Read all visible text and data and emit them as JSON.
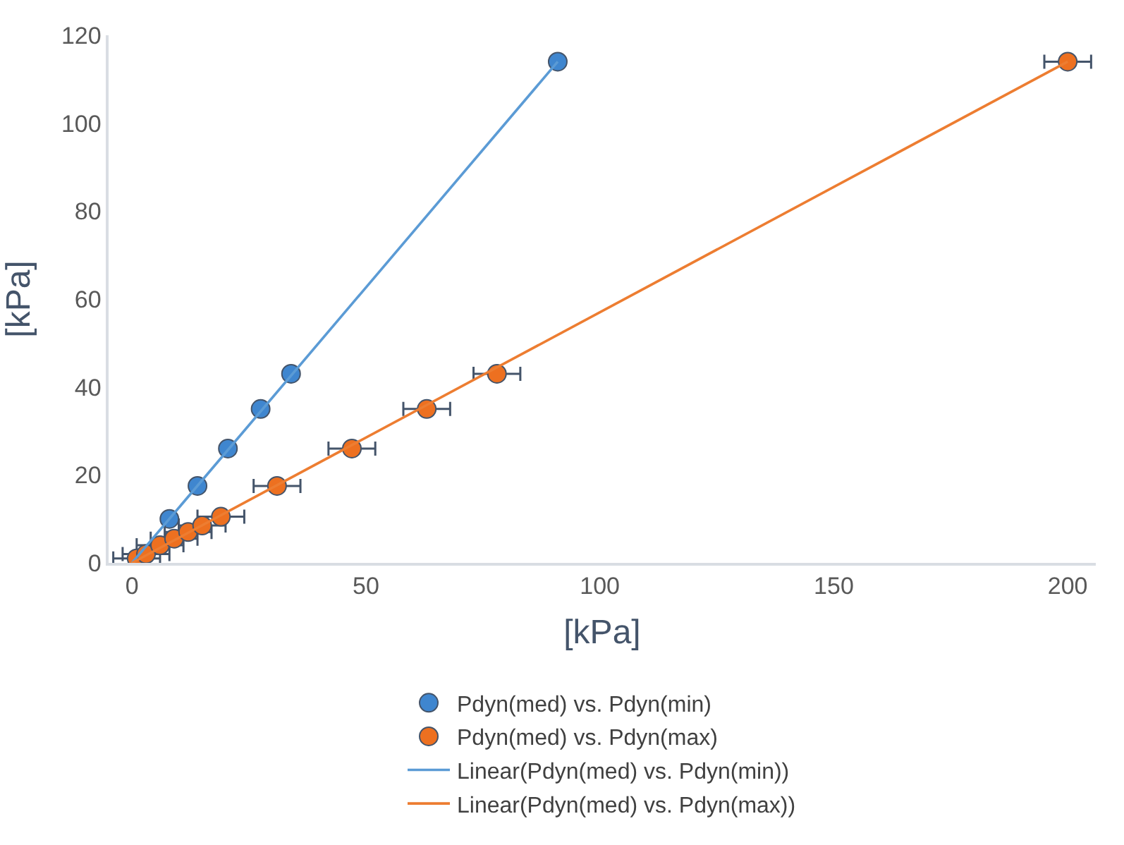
{
  "chart_data": {
    "type": "scatter",
    "xlabel": "[kPa]",
    "ylabel": "[kPa]",
    "xlim": [
      -5,
      206
    ],
    "ylim": [
      0,
      120
    ],
    "xticks": [
      0,
      50,
      100,
      150,
      200
    ],
    "yticks": [
      0,
      20,
      40,
      60,
      80,
      100,
      120
    ],
    "legend": "bottom",
    "marker": "circle",
    "series": [
      {
        "name": "Pdyn(med) vs. Pdyn(min)",
        "color": "#3f86cf",
        "x": [
          8,
          14,
          20.5,
          27.5,
          34,
          91
        ],
        "values": [
          10,
          17.5,
          26,
          35,
          43,
          114
        ]
      },
      {
        "name": "Pdyn(med) vs. Pdyn(max)",
        "color": "#ed7020",
        "x": [
          1,
          3,
          6,
          9,
          12,
          15,
          19,
          31,
          47,
          63,
          78,
          200
        ],
        "values": [
          1,
          2,
          4,
          5.5,
          7,
          8.5,
          10.5,
          17.5,
          26,
          35,
          43,
          114
        ],
        "xerrors": [
          5,
          5,
          5,
          5,
          5,
          5,
          5,
          5,
          5,
          5,
          5,
          5
        ]
      },
      {
        "name": "Linear(Pdyn(med) vs. Pdyn(min))",
        "type": "line",
        "marker": "none",
        "color": "#5b9bd5",
        "x": [
          0,
          91
        ],
        "values": [
          0,
          114
        ]
      },
      {
        "name": "Linear(Pdyn(med) vs. Pdyn(max))",
        "type": "line",
        "marker": "none",
        "color": "#ed7d31",
        "x": [
          0,
          200
        ],
        "values": [
          0,
          114
        ]
      }
    ]
  }
}
